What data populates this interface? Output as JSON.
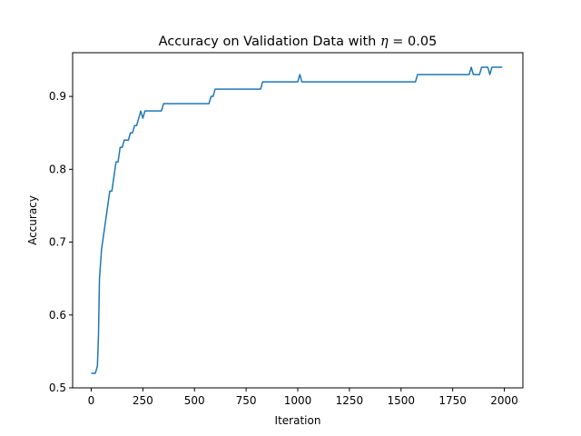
{
  "chart_data": {
    "type": "line",
    "title": "Accuracy on Validation Data with",
    "title_math": {
      "symbol": "η",
      "rest": " = 0.05"
    },
    "xlabel": "Iteration",
    "ylabel": "Accuracy",
    "xlim": [
      -90,
      2090
    ],
    "ylim": [
      0.5,
      0.96
    ],
    "xticks": [
      0,
      250,
      500,
      750,
      1000,
      1250,
      1500,
      1750,
      2000
    ],
    "yticks": [
      0.5,
      0.6,
      0.7,
      0.8,
      0.9
    ],
    "xtick_labels": [
      "0",
      "250",
      "500",
      "750",
      "1000",
      "1250",
      "1500",
      "1750",
      "2000"
    ],
    "ytick_labels": [
      "0.5",
      "0.6",
      "0.7",
      "0.8",
      "0.9"
    ],
    "grid": false,
    "series": [
      {
        "color": "#1f77b4",
        "x": [
          0,
          20,
          30,
          35,
          40,
          45,
          50,
          60,
          70,
          80,
          90,
          100,
          110,
          120,
          130,
          140,
          150,
          160,
          170,
          180,
          190,
          200,
          210,
          220,
          230,
          240,
          250,
          260,
          270,
          280,
          290,
          300,
          340,
          350,
          360,
          400,
          450,
          500,
          550,
          570,
          580,
          590,
          600,
          610,
          650,
          700,
          750,
          800,
          820,
          830,
          840,
          900,
          950,
          1000,
          1010,
          1020,
          1030,
          1100,
          1200,
          1300,
          1400,
          1500,
          1570,
          1580,
          1600,
          1700,
          1800,
          1830,
          1840,
          1850,
          1880,
          1890,
          1900,
          1920,
          1930,
          1940,
          1950,
          1990
        ],
        "y": [
          0.52,
          0.52,
          0.53,
          0.57,
          0.65,
          0.67,
          0.69,
          0.71,
          0.73,
          0.75,
          0.77,
          0.77,
          0.79,
          0.81,
          0.81,
          0.83,
          0.83,
          0.84,
          0.84,
          0.84,
          0.85,
          0.85,
          0.86,
          0.86,
          0.87,
          0.88,
          0.87,
          0.88,
          0.88,
          0.88,
          0.88,
          0.88,
          0.88,
          0.89,
          0.89,
          0.89,
          0.89,
          0.89,
          0.89,
          0.89,
          0.9,
          0.9,
          0.91,
          0.91,
          0.91,
          0.91,
          0.91,
          0.91,
          0.91,
          0.92,
          0.92,
          0.92,
          0.92,
          0.92,
          0.93,
          0.92,
          0.92,
          0.92,
          0.92,
          0.92,
          0.92,
          0.92,
          0.92,
          0.93,
          0.93,
          0.93,
          0.93,
          0.93,
          0.94,
          0.93,
          0.93,
          0.94,
          0.94,
          0.94,
          0.93,
          0.94,
          0.94,
          0.94
        ]
      }
    ]
  }
}
